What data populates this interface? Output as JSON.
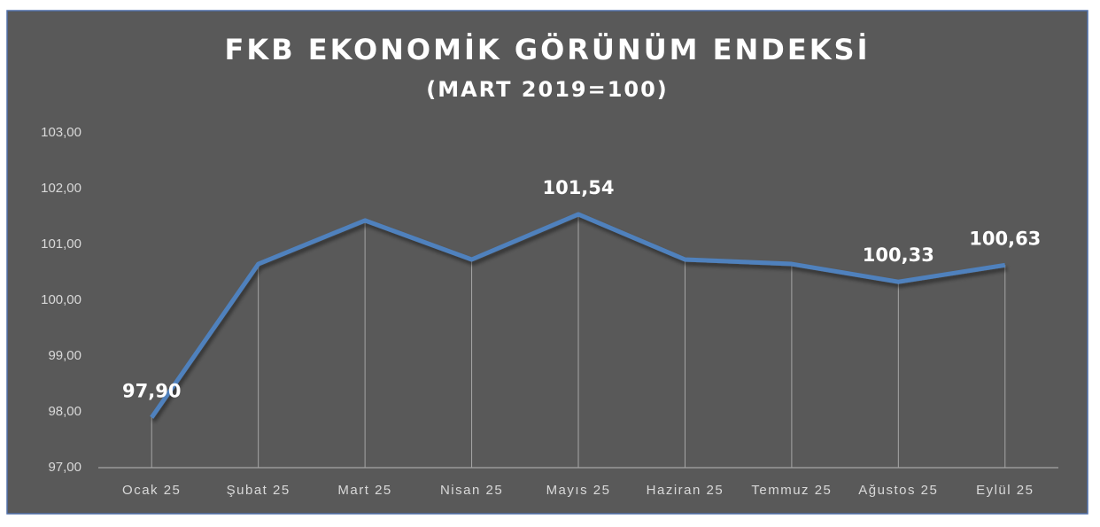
{
  "chart_data": {
    "type": "line",
    "title": "FKB EKONOMİK GÖRÜNÜM ENDEKSİ",
    "subtitle": "(MART 2019=100)",
    "categories": [
      "Ocak 25",
      "Şubat 25",
      "Mart 25",
      "Nisan 25",
      "Mayıs 25",
      "Haziran 25",
      "Temmuz 25",
      "Ağustos 25",
      "Eylül 25"
    ],
    "series": [
      {
        "name": "FKB Ekonomik Görünüm Endeksi",
        "color": "#4f81bd",
        "values": [
          97.9,
          100.65,
          101.43,
          100.73,
          101.54,
          100.73,
          100.65,
          100.33,
          100.63
        ],
        "value_labels": [
          "97,90",
          null,
          null,
          null,
          "101,54",
          null,
          null,
          "100,33",
          "100,63"
        ]
      }
    ],
    "ylim": [
      97,
      103
    ],
    "yticks": [
      {
        "value": 97,
        "label": "97,00"
      },
      {
        "value": 98,
        "label": "98,00"
      },
      {
        "value": 99,
        "label": "99,00"
      },
      {
        "value": 100,
        "label": "100,00"
      },
      {
        "value": 101,
        "label": "101,00"
      },
      {
        "value": 102,
        "label": "102,00"
      },
      {
        "value": 103,
        "label": "103,00"
      }
    ],
    "drop_lines": true
  }
}
